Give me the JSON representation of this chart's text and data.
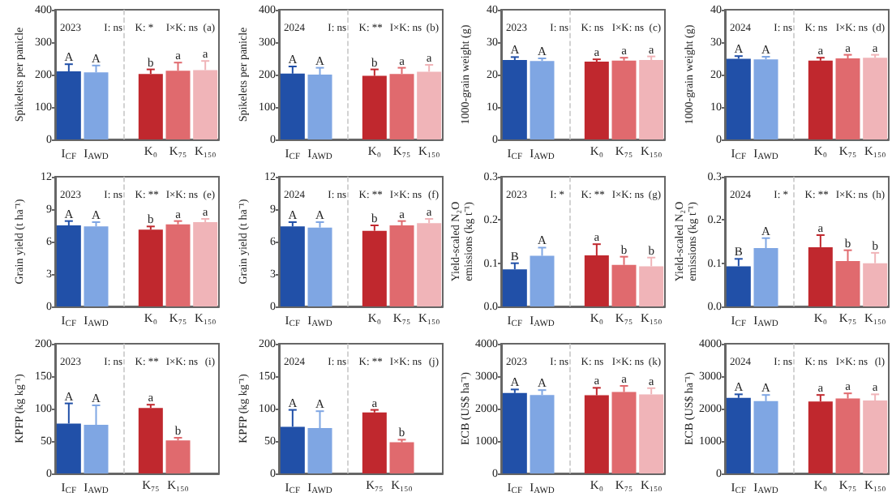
{
  "chart_data": [
    {
      "type": "bar",
      "ylabel": "Spikelets per panicle",
      "categories": [
        "I$_{CF}$",
        "I$_{AWD}$",
        null,
        "K₀",
        "K₇₅",
        "K₁₅₀"
      ],
      "ylim": [
        0,
        400
      ],
      "yticks": [
        0,
        100,
        200,
        300,
        400
      ],
      "values": [
        210,
        207,
        null,
        202,
        212,
        214
      ],
      "errors": [
        22,
        21,
        null,
        14,
        25,
        28
      ],
      "colors": [
        "#2150a8",
        "#7fa6e3",
        null,
        "#c0282e",
        "#e06a6e",
        "#f0b4b8"
      ],
      "ref_lines": [
        {
          "axis": "x",
          "value": null,
          "color": "#c8c8c8",
          "line_style": "dashed"
        }
      ],
      "annotations": [
        "2023",
        "I: ns",
        "K: *",
        "I×K: ns",
        "(a)",
        {
          "text": "A",
          "x": "I$_{CF}$",
          "y": 232
        },
        {
          "text": "A",
          "x": "I$_{AWD}$",
          "y": 228
        },
        {
          "text": "b",
          "x": "K₀",
          "y": 216
        },
        {
          "text": "a",
          "x": "K₇₅",
          "y": 237
        },
        {
          "text": "a",
          "x": "K₁₅₀",
          "y": 242
        }
      ]
    },
    {
      "type": "bar",
      "ylabel": "Spikelets per panicle",
      "categories": [
        "I$_{CF}$",
        "I$_{AWD}$",
        null,
        "K₀",
        "K₇₅",
        "K₁₅₀"
      ],
      "ylim": [
        0,
        400
      ],
      "yticks": [
        0,
        100,
        200,
        300,
        400
      ],
      "values": [
        203,
        200,
        null,
        196,
        202,
        209
      ],
      "errors": [
        22,
        21,
        null,
        20,
        19,
        21
      ],
      "colors": [
        "#2150a8",
        "#7fa6e3",
        null,
        "#c0282e",
        "#e06a6e",
        "#f0b4b8"
      ],
      "ref_lines": [
        {
          "axis": "x",
          "value": null,
          "color": "#c8c8c8",
          "line_style": "dashed"
        }
      ],
      "annotations": [
        "2024",
        "I: ns",
        "K: **",
        "I×K: ns",
        "(b)",
        {
          "text": "A",
          "x": "I$_{CF}$",
          "y": 225
        },
        {
          "text": "A",
          "x": "I$_{AWD}$",
          "y": 221
        },
        {
          "text": "b",
          "x": "K₀",
          "y": 216
        },
        {
          "text": "a",
          "x": "K₇₅",
          "y": 221
        },
        {
          "text": "a",
          "x": "K₁₅₀",
          "y": 230
        }
      ]
    },
    {
      "type": "bar",
      "ylabel": "1000-grain weight (g)",
      "categories": [
        "I$_{CF}$",
        "I$_{AWD}$",
        null,
        "K₀",
        "K₇₅",
        "K₁₅₀"
      ],
      "ylim": [
        0,
        40
      ],
      "yticks": [
        0,
        10,
        20,
        30,
        40
      ],
      "values": [
        24.5,
        24.2,
        null,
        24.0,
        24.3,
        24.5
      ],
      "errors": [
        0.9,
        0.8,
        null,
        0.7,
        0.9,
        1.1
      ],
      "colors": [
        "#2150a8",
        "#7fa6e3",
        null,
        "#c0282e",
        "#e06a6e",
        "#f0b4b8"
      ],
      "ref_lines": [
        {
          "axis": "x",
          "value": null,
          "color": "#c8c8c8",
          "line_style": "dashed"
        }
      ],
      "annotations": [
        "2023",
        "I: ns",
        "K: ns",
        "I×K: ns",
        "(c)",
        {
          "text": "A",
          "x": "I$_{CF}$",
          "y": 25.4
        },
        {
          "text": "A",
          "x": "I$_{AWD}$",
          "y": 25.0
        },
        {
          "text": "a",
          "x": "K₀",
          "y": 24.7
        },
        {
          "text": "a",
          "x": "K₇₅",
          "y": 25.2
        },
        {
          "text": "a",
          "x": "K₁₅₀",
          "y": 25.6
        }
      ]
    },
    {
      "type": "bar",
      "ylabel": "1000-grain weight (g)",
      "categories": [
        "I$_{CF}$",
        "I$_{AWD}$",
        null,
        "K₀",
        "K₇₅",
        "K₁₅₀"
      ],
      "ylim": [
        0,
        40
      ],
      "yticks": [
        0,
        10,
        20,
        30,
        40
      ],
      "values": [
        24.9,
        24.7,
        null,
        24.3,
        25.0,
        25.2
      ],
      "errors": [
        0.8,
        0.8,
        null,
        0.9,
        1.1,
        0.9
      ],
      "colors": [
        "#2150a8",
        "#7fa6e3",
        null,
        "#c0282e",
        "#e06a6e",
        "#f0b4b8"
      ],
      "ref_lines": [
        {
          "axis": "x",
          "value": null,
          "color": "#c8c8c8",
          "line_style": "dashed"
        }
      ],
      "annotations": [
        "2024",
        "I: ns",
        "K: ns",
        "I×K: ns",
        "(d)",
        {
          "text": "A",
          "x": "I$_{CF}$",
          "y": 25.7
        },
        {
          "text": "A",
          "x": "I$_{AWD}$",
          "y": 25.5
        },
        {
          "text": "a",
          "x": "K₀",
          "y": 25.2
        },
        {
          "text": "a",
          "x": "K₇₅",
          "y": 26.1
        },
        {
          "text": "a",
          "x": "K₁₅₀",
          "y": 26.1
        }
      ]
    },
    {
      "type": "bar",
      "ylabel": "Grain yield (t ha⁻¹)",
      "categories": [
        "I$_{CF}$",
        "I$_{AWD}$",
        null,
        "K₀",
        "K₇₅",
        "K₁₅₀"
      ],
      "ylim": [
        0,
        12
      ],
      "yticks": [
        0,
        3,
        6,
        9,
        12
      ],
      "values": [
        7.5,
        7.4,
        null,
        7.1,
        7.6,
        7.8
      ],
      "errors": [
        0.4,
        0.4,
        null,
        0.3,
        0.3,
        0.3
      ],
      "colors": [
        "#2150a8",
        "#7fa6e3",
        null,
        "#c0282e",
        "#e06a6e",
        "#f0b4b8"
      ],
      "ref_lines": [
        {
          "axis": "x",
          "value": null,
          "color": "#c8c8c8",
          "line_style": "dashed"
        }
      ],
      "annotations": [
        "2023",
        "I: ns",
        "K: **",
        "I×K: ns",
        "(e)",
        {
          "text": "A",
          "x": "I$_{CF}$",
          "y": 7.9
        },
        {
          "text": "A",
          "x": "I$_{AWD}$",
          "y": 7.8
        },
        {
          "text": "b",
          "x": "K₀",
          "y": 7.4
        },
        {
          "text": "a",
          "x": "K₇₅",
          "y": 7.9
        },
        {
          "text": "a",
          "x": "K₁₅₀",
          "y": 8.1
        }
      ]
    },
    {
      "type": "bar",
      "ylabel": "Grain yield (t ha⁻¹)",
      "categories": [
        "I$_{CF}$",
        "I$_{AWD}$",
        null,
        "K₀",
        "K₇₅",
        "K₁₅₀"
      ],
      "ylim": [
        0,
        12
      ],
      "yticks": [
        0,
        3,
        6,
        9,
        12
      ],
      "values": [
        7.4,
        7.3,
        null,
        7.0,
        7.5,
        7.7
      ],
      "errors": [
        0.4,
        0.5,
        null,
        0.5,
        0.4,
        0.4
      ],
      "colors": [
        "#2150a8",
        "#7fa6e3",
        null,
        "#c0282e",
        "#e06a6e",
        "#f0b4b8"
      ],
      "ref_lines": [
        {
          "axis": "x",
          "value": null,
          "color": "#c8c8c8",
          "line_style": "dashed"
        }
      ],
      "annotations": [
        "2024",
        "I: ns",
        "K: **",
        "I×K: ns",
        "(f)",
        {
          "text": "A",
          "x": "I$_{CF}$",
          "y": 7.8
        },
        {
          "text": "A",
          "x": "I$_{AWD}$",
          "y": 7.8
        },
        {
          "text": "b",
          "x": "K₀",
          "y": 7.5
        },
        {
          "text": "a",
          "x": "K₇₅",
          "y": 7.9
        },
        {
          "text": "a",
          "x": "K₁₅₀",
          "y": 8.1
        }
      ]
    },
    {
      "type": "bar",
      "ylabel": "Yield-scaled N₂O emissions (kg t⁻¹)",
      "categories": [
        "I$_{CF}$",
        "I$_{AWD}$",
        null,
        "K₀",
        "K₇₅",
        "K₁₅₀"
      ],
      "ylim": [
        0,
        0.3
      ],
      "yticks": [
        {
          "value": 0,
          "label": "0.0"
        },
        0.1,
        0.2,
        0.3
      ],
      "values": [
        0.086,
        0.117,
        null,
        0.118,
        0.096,
        0.093
      ],
      "errors": [
        0.014,
        0.019,
        null,
        0.026,
        0.019,
        0.02
      ],
      "colors": [
        "#2150a8",
        "#7fa6e3",
        null,
        "#c0282e",
        "#e06a6e",
        "#f0b4b8"
      ],
      "ref_lines": [
        {
          "axis": "x",
          "value": null,
          "color": "#c8c8c8",
          "line_style": "dashed"
        }
      ],
      "annotations": [
        "2023",
        "I: *",
        "K: **",
        "I×K: ns",
        "(g)",
        {
          "text": "B",
          "x": "I$_{CF}$",
          "y": 0.1
        },
        {
          "text": "A",
          "x": "I$_{AWD}$",
          "y": 0.136
        },
        {
          "text": "a",
          "x": "K₀",
          "y": 0.144
        },
        {
          "text": "b",
          "x": "K₇₅",
          "y": 0.115
        },
        {
          "text": "b",
          "x": "K₁₅₀",
          "y": 0.113
        }
      ]
    },
    {
      "type": "bar",
      "ylabel": "Yield-scaled N₂O emissions (kg t⁻¹)",
      "categories": [
        "I$_{CF}$",
        "I$_{AWD}$",
        null,
        "K₀",
        "K₇₅",
        "K₁₅₀"
      ],
      "ylim": [
        0,
        0.3
      ],
      "yticks": [
        {
          "value": 0,
          "label": "0.0"
        },
        0.1,
        0.2,
        0.3
      ],
      "values": [
        0.093,
        0.135,
        null,
        0.137,
        0.105,
        0.1
      ],
      "errors": [
        0.017,
        0.023,
        null,
        0.028,
        0.025,
        0.024
      ],
      "colors": [
        "#2150a8",
        "#7fa6e3",
        null,
        "#c0282e",
        "#e06a6e",
        "#f0b4b8"
      ],
      "ref_lines": [
        {
          "axis": "x",
          "value": null,
          "color": "#c8c8c8",
          "line_style": "dashed"
        }
      ],
      "annotations": [
        "2024",
        "I: *",
        "K: **",
        "I×K: ns",
        "(h)",
        {
          "text": "B",
          "x": "I$_{CF}$",
          "y": 0.11
        },
        {
          "text": "A",
          "x": "I$_{AWD}$",
          "y": 0.158
        },
        {
          "text": "a",
          "x": "K₀",
          "y": 0.165
        },
        {
          "text": "b",
          "x": "K₇₅",
          "y": 0.13
        },
        {
          "text": "b",
          "x": "K₁₅₀",
          "y": 0.124
        }
      ]
    },
    {
      "type": "bar",
      "ylabel": "KPFP (kg kg⁻¹)",
      "categories": [
        "I$_{CF}$",
        "I$_{AWD}$",
        null,
        "K₇₅",
        "K₁₅₀",
        null
      ],
      "ylim": [
        0,
        200
      ],
      "yticks": [
        0,
        50,
        100,
        150,
        200
      ],
      "values": [
        77,
        75,
        null,
        101,
        51,
        null
      ],
      "errors": [
        31,
        30,
        null,
        5,
        4,
        null
      ],
      "colors": [
        "#2150a8",
        "#7fa6e3",
        null,
        "#c0282e",
        "#e06a6e",
        null
      ],
      "ref_lines": [
        {
          "axis": "x",
          "value": null,
          "color": "#c8c8c8",
          "line_style": "dashed"
        }
      ],
      "annotations": [
        "2023",
        "I: ns",
        "K: **",
        "I×K: ns",
        "(i)",
        {
          "text": "A",
          "x": "I$_{CF}$",
          "y": 108
        },
        {
          "text": "A",
          "x": "I$_{AWD}$",
          "y": 105
        },
        {
          "text": "a",
          "x": "K₇₅",
          "y": 106
        },
        {
          "text": "b",
          "x": "K₁₅₀",
          "y": 55
        }
      ]
    },
    {
      "type": "bar",
      "ylabel": "KPFP (kg kg⁻¹)",
      "categories": [
        "I$_{CF}$",
        "I$_{AWD}$",
        null,
        "K₇₅",
        "K₁₅₀",
        null
      ],
      "ylim": [
        0,
        200
      ],
      "yticks": [
        0,
        50,
        100,
        150,
        200
      ],
      "values": [
        72,
        70,
        null,
        94,
        48,
        null
      ],
      "errors": [
        26,
        26,
        null,
        4,
        4,
        null
      ],
      "colors": [
        "#2150a8",
        "#7fa6e3",
        null,
        "#c0282e",
        "#e06a6e",
        null
      ],
      "ref_lines": [
        {
          "axis": "x",
          "value": null,
          "color": "#c8c8c8",
          "line_style": "dashed"
        }
      ],
      "annotations": [
        "2024",
        "I: ns",
        "K: **",
        "I×K: ns",
        "(j)",
        {
          "text": "A",
          "x": "I$_{CF}$",
          "y": 98
        },
        {
          "text": "A",
          "x": "I$_{AWD}$",
          "y": 96
        },
        {
          "text": "a",
          "x": "K₇₅",
          "y": 98
        },
        {
          "text": "b",
          "x": "K₁₅₀",
          "y": 52
        }
      ]
    },
    {
      "type": "bar",
      "ylabel": "ECB (US$ ha⁻¹)",
      "categories": [
        "I$_{CF}$",
        "I$_{AWD}$",
        null,
        "K₀",
        "K₇₅",
        "K₁₅₀"
      ],
      "ylim": [
        0,
        4000
      ],
      "yticks": [
        0,
        1000,
        2000,
        3000,
        4000
      ],
      "values": [
        2480,
        2420,
        null,
        2410,
        2510,
        2440
      ],
      "errors": [
        110,
        150,
        null,
        230,
        190,
        190
      ],
      "colors": [
        "#2150a8",
        "#7fa6e3",
        null,
        "#c0282e",
        "#e06a6e",
        "#f0b4b8"
      ],
      "ref_lines": [
        {
          "axis": "x",
          "value": null,
          "color": "#c8c8c8",
          "line_style": "dashed"
        }
      ],
      "annotations": [
        "2023",
        "I: ns",
        "K: ns",
        "I×K: ns",
        "(k)",
        {
          "text": "A",
          "x": "I$_{CF}$",
          "y": 2590
        },
        {
          "text": "A",
          "x": "I$_{AWD}$",
          "y": 2570
        },
        {
          "text": "a",
          "x": "K₀",
          "y": 2640
        },
        {
          "text": "a",
          "x": "K₇₅",
          "y": 2700
        },
        {
          "text": "a",
          "x": "K₁₅₀",
          "y": 2630
        }
      ]
    },
    {
      "type": "bar",
      "ylabel": "ECB (US$ ha⁻¹)",
      "categories": [
        "I$_{CF}$",
        "I$_{AWD}$",
        null,
        "K₀",
        "K₇₅",
        "K₁₅₀"
      ],
      "ylim": [
        0,
        4000
      ],
      "yticks": [
        0,
        1000,
        2000,
        3000,
        4000
      ],
      "values": [
        2330,
        2230,
        null,
        2220,
        2310,
        2250
      ],
      "errors": [
        110,
        190,
        null,
        200,
        160,
        190
      ],
      "colors": [
        "#2150a8",
        "#7fa6e3",
        null,
        "#c0282e",
        "#e06a6e",
        "#f0b4b8"
      ],
      "ref_lines": [
        {
          "axis": "x",
          "value": null,
          "color": "#c8c8c8",
          "line_style": "dashed"
        }
      ],
      "annotations": [
        "2024",
        "I: ns",
        "K: ns",
        "I×K: ns",
        "(l)",
        {
          "text": "A",
          "x": "I$_{CF}$",
          "y": 2440
        },
        {
          "text": "A",
          "x": "I$_{AWD}$",
          "y": 2420
        },
        {
          "text": "a",
          "x": "K₀",
          "y": 2420
        },
        {
          "text": "a",
          "x": "K₇₅",
          "y": 2470
        },
        {
          "text": "a",
          "x": "K₁₅₀",
          "y": 2440
        }
      ]
    }
  ]
}
